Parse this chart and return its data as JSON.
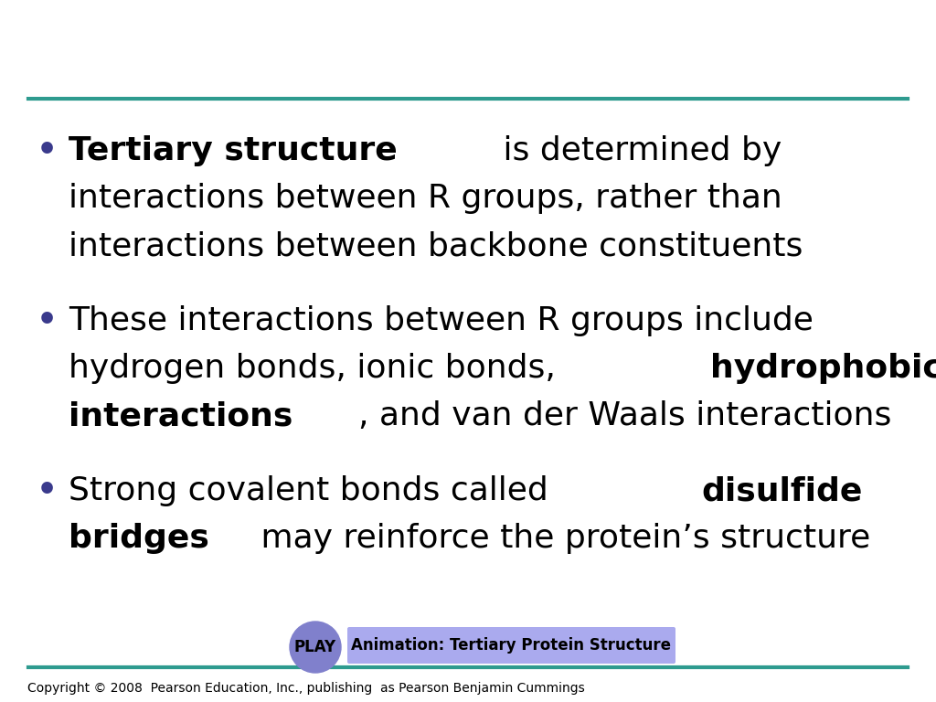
{
  "bg_color": "#ffffff",
  "top_line_color": "#2e9b8f",
  "bottom_line_color": "#2e9b8f",
  "bullet_color": "#3a3a8c",
  "text_color": "#000000",
  "copyright_text": "Copyright © 2008  Pearson Education, Inc., publishing  as Pearson Benjamin Cummings",
  "copyright_fontsize": 10,
  "play_button_color": "#8080cc",
  "anim_box_color": "#aaaaee",
  "anim_text": "Animation: Tertiary Protein Structure",
  "play_text": "PLAY",
  "bullet_fontsize": 26,
  "line_width": 3
}
